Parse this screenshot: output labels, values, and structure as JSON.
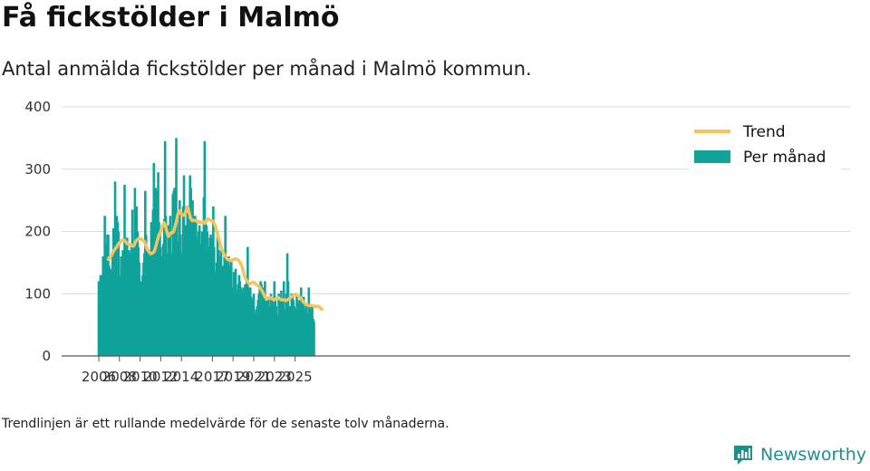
{
  "title": "Få fickstölder i Malmö",
  "subtitle": "Antal anmälda fickstölder per månad i Malmö kommun.",
  "footnote": "Trendlinjen är ett rullande medelvärde för de senaste tolv månaderna.",
  "brand": {
    "name": "Newsworthy",
    "icon": "newsworthy-logo-icon",
    "color": "#1e8f8a"
  },
  "colors": {
    "bars": "#0fa39a",
    "trend": "#f5c45e",
    "grid": "#dcdcdc",
    "axis": "#555555"
  },
  "chart_data": {
    "type": "bar",
    "x_unit": "month",
    "x_start": "2006-01",
    "ylim": [
      0,
      400
    ],
    "yticks": [
      0,
      100,
      200,
      300,
      400
    ],
    "xtick_labels": [
      "2006",
      "2008",
      "2010",
      "2012",
      "2014",
      "2017",
      "2019",
      "2021",
      "2023",
      "2025"
    ],
    "legend": {
      "position": "top-right",
      "entries": [
        "Trend",
        "Per månad"
      ]
    },
    "series": [
      {
        "name": "Per månad",
        "type": "bar",
        "values": [
          120,
          80,
          130,
          125,
          130,
          160,
          150,
          225,
          180,
          175,
          195,
          195,
          145,
          130,
          140,
          130,
          160,
          205,
          155,
          280,
          175,
          225,
          215,
          200,
          130,
          130,
          160,
          155,
          170,
          165,
          275,
          180,
          185,
          190,
          165,
          170,
          165,
          150,
          175,
          235,
          175,
          160,
          270,
          175,
          240,
          200,
          175,
          150,
          110,
          120,
          120,
          130,
          150,
          165,
          265,
          195,
          175,
          165,
          160,
          150,
          170,
          215,
          160,
          235,
          310,
          250,
          270,
          265,
          175,
          295,
          215,
          200,
          175,
          160,
          130,
          180,
          220,
          345,
          225,
          165,
          140,
          210,
          195,
          225,
          140,
          165,
          260,
          265,
          270,
          225,
          350,
          220,
          160,
          185,
          250,
          195,
          165,
          150,
          240,
          290,
          180,
          210,
          170,
          230,
          220,
          200,
          290,
          270,
          175,
          250,
          225,
          205,
          225,
          220,
          190,
          180,
          200,
          210,
          180,
          165,
          200,
          195,
          255,
          345,
          220,
          210,
          200,
          175,
          165,
          190,
          195,
          180,
          190,
          240,
          175,
          135,
          135,
          150,
          200,
          170,
          160,
          145,
          175,
          145,
          130,
          145,
          160,
          225,
          155,
          150,
          140,
          160,
          130,
          145,
          155,
          110,
          110,
          135,
          130,
          140,
          100,
          105,
          115,
          130,
          120,
          110,
          105,
          90,
          110,
          90,
          115,
          115,
          125,
          175,
          110,
          100,
          110,
          95,
          90,
          90,
          100,
          70,
          65,
          75,
          80,
          90,
          100,
          110,
          120,
          115,
          75,
          110,
          85,
          120,
          75,
          95,
          70,
          95,
          80,
          75,
          100,
          90,
          80,
          90,
          120,
          95,
          80,
          65,
          60,
          100,
          80,
          90,
          105,
          90,
          80,
          120,
          75,
          65,
          100,
          165,
          120,
          75,
          80,
          80,
          100,
          95,
          90,
          80,
          55,
          75,
          100,
          90,
          85,
          70,
          90,
          110,
          75,
          85,
          95,
          75,
          75,
          80,
          65,
          70,
          110,
          75,
          75,
          80,
          80,
          60,
          55
        ]
      },
      {
        "name": "Trend",
        "type": "line",
        "start_index": 11,
        "values": [
          155,
          158,
          158,
          160,
          162,
          165,
          168,
          170,
          172,
          174,
          175,
          178,
          180,
          182,
          182,
          185,
          186,
          186,
          186,
          185,
          184,
          182,
          180,
          180,
          179,
          179,
          178,
          178,
          177,
          176,
          178,
          181,
          184,
          186,
          187,
          188,
          188,
          188,
          188,
          187,
          186,
          185,
          184,
          180,
          176,
          172,
          170,
          168,
          166,
          165,
          164,
          165,
          166,
          167,
          170,
          175,
          180,
          185,
          190,
          195,
          197,
          200,
          205,
          210,
          212,
          214,
          210,
          205,
          200,
          195,
          192,
          195,
          197,
          198,
          198,
          198,
          200,
          205,
          210,
          215,
          222,
          228,
          232,
          233,
          230,
          228,
          227,
          226,
          226,
          228,
          232,
          236,
          240,
          236,
          230,
          225,
          220,
          218,
          217,
          218,
          218,
          218,
          217,
          216,
          215,
          215,
          216,
          215,
          214,
          215,
          216,
          214,
          213,
          215,
          218,
          220,
          220,
          219,
          218,
          218,
          217,
          217,
          215,
          213,
          210,
          205,
          200,
          195,
          190,
          185,
          180,
          175,
          170,
          168,
          165,
          162,
          160,
          158,
          156,
          155,
          155,
          154,
          153,
          153,
          154,
          155,
          155,
          156,
          156,
          155,
          155,
          154,
          152,
          150,
          148,
          145,
          140,
          135,
          130,
          126,
          123,
          121,
          119,
          117,
          116,
          116,
          117,
          118,
          118,
          118,
          118,
          116,
          115,
          114,
          113,
          112,
          110,
          108,
          106,
          104,
          101,
          98,
          95,
          93,
          91,
          92,
          93,
          93,
          94,
          93,
          92,
          91,
          90,
          90,
          91,
          92,
          93,
          94,
          93,
          92,
          91,
          90,
          90,
          90,
          90,
          90,
          89,
          89,
          90,
          91,
          92,
          93,
          94,
          95,
          96,
          97,
          98,
          99,
          99,
          98,
          97,
          96,
          95,
          94,
          92,
          90,
          88,
          86,
          85,
          84,
          83,
          82,
          82,
          81,
          81,
          81,
          81,
          81,
          80,
          80,
          79,
          79,
          80,
          79,
          80,
          79,
          78,
          76,
          75
        ]
      }
    ]
  }
}
